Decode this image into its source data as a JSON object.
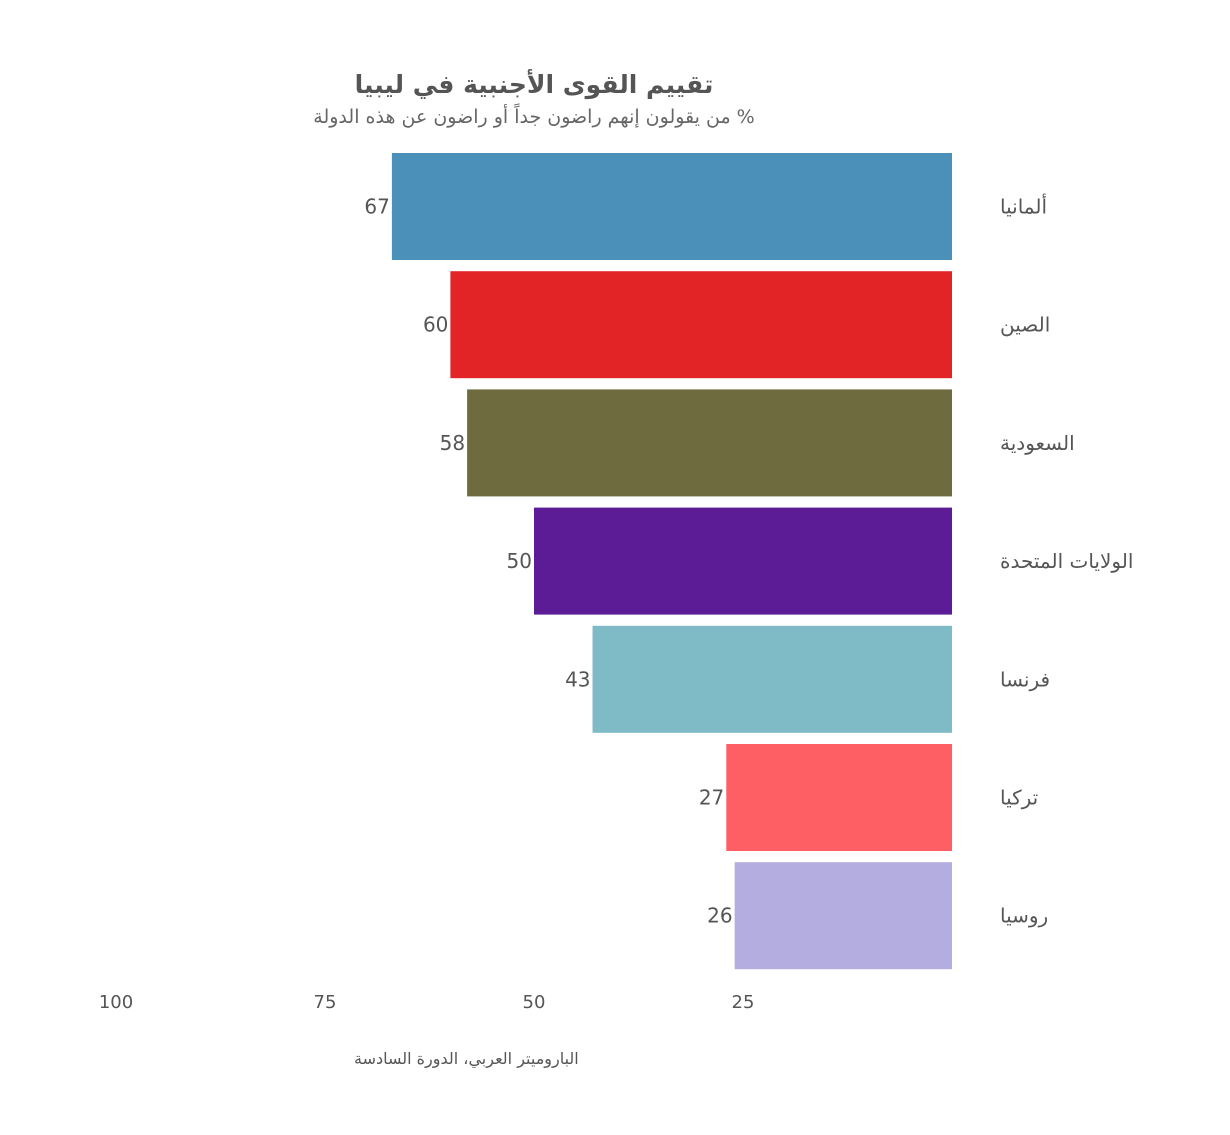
{
  "chart_data": {
    "type": "bar",
    "orientation": "horizontal",
    "title": "تقييم القوى الأجنبية في ليبيا",
    "subtitle": "% من يقولون إنهم راضون جداً أو راضون عن هذه الدولة",
    "categories": [
      "ألمانيا",
      "الصين",
      "السعودية",
      "الولايات المتحدة",
      "فرنسا",
      "تركيا",
      "روسيا"
    ],
    "values": [
      67,
      60,
      58,
      50,
      43,
      27,
      26
    ],
    "colors": [
      "#4a90b8",
      "#e32427",
      "#6e6b3e",
      "#5c1c95",
      "#7fbac7",
      "#fe5f64",
      "#b3ade0"
    ],
    "xlim": [
      0,
      100
    ],
    "x_reversed": true,
    "x_ticks": [
      100,
      75,
      50,
      25
    ],
    "grid": false,
    "legend": "none",
    "source": "الباروميتر العربي، الدورة السادسة"
  }
}
